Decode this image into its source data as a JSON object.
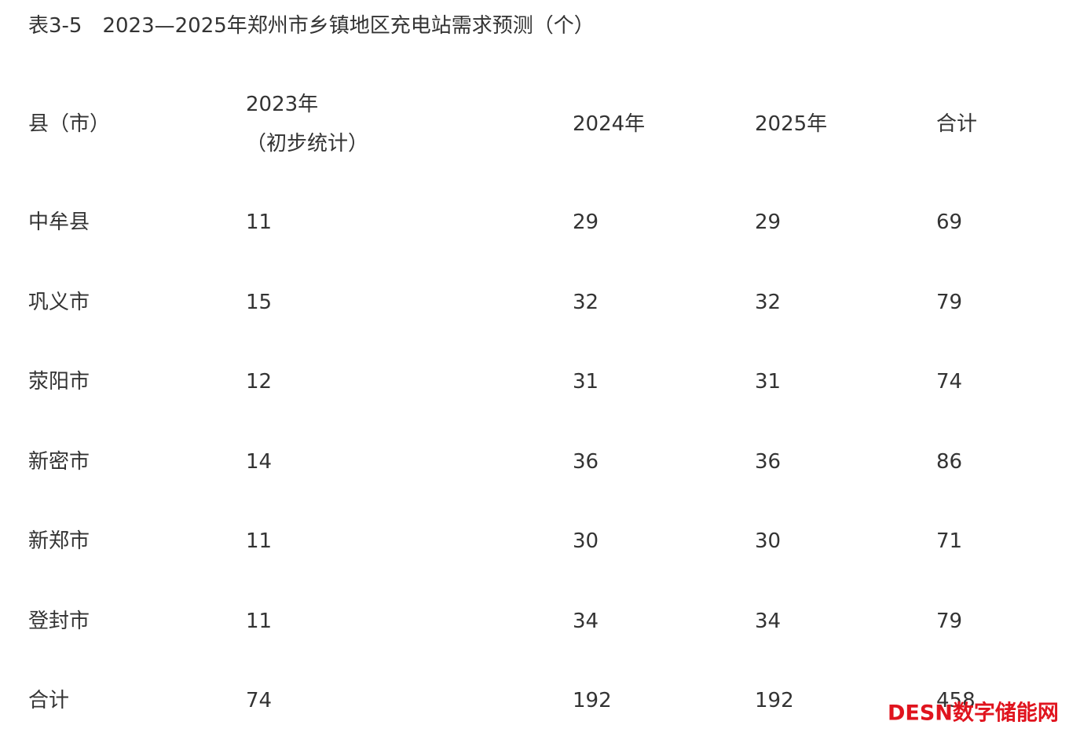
{
  "title": "表3-5　2023—2025年郑州市乡镇地区充电站需求预测（个）",
  "table": {
    "header": [
      [
        "县（市）"
      ],
      [
        "2023年",
        "（初步统计）"
      ],
      [
        "2024年"
      ],
      [
        "2025年"
      ],
      [
        "合计"
      ]
    ],
    "rows": [
      [
        "中牟县",
        11,
        29,
        29,
        69
      ],
      [
        "巩义市",
        15,
        32,
        32,
        79
      ],
      [
        "荥阳市",
        12,
        31,
        31,
        74
      ],
      [
        "新密市",
        14,
        36,
        36,
        86
      ],
      [
        "新郑市",
        11,
        30,
        30,
        71
      ],
      [
        "登封市",
        11,
        34,
        34,
        79
      ],
      [
        "合计",
        74,
        192,
        192,
        458
      ]
    ]
  },
  "watermark": "DESN数字储能网"
}
